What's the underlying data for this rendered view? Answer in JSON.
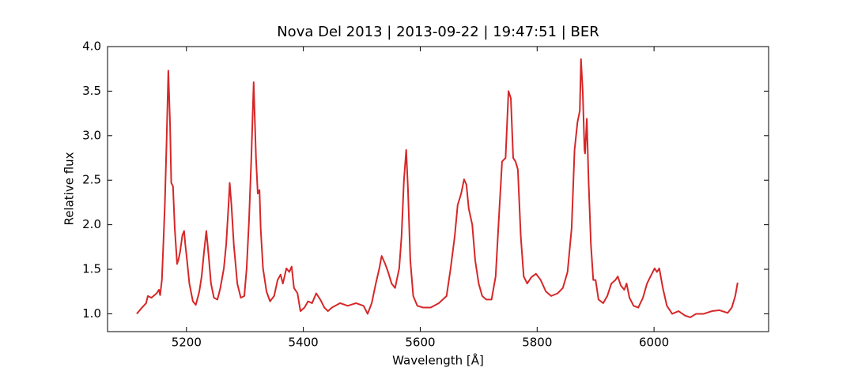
{
  "chart_data": {
    "type": "line",
    "title": "Nova Del 2013 | 2013-09-22 | 19:47:51 | BER",
    "x_label": "Wavelength [Å]",
    "y_label": "Relative flux",
    "xlim": [
      5065,
      6196
    ],
    "ylim": [
      0.8,
      4.0
    ],
    "xticks": [
      5200,
      5400,
      5600,
      5800,
      6000
    ],
    "yticks": [
      {
        "value": 1.0,
        "label": "1.0"
      },
      {
        "value": 1.5,
        "label": "1.5"
      },
      {
        "value": 2.0,
        "label": "2.0"
      },
      {
        "value": 2.5,
        "label": "2.5"
      },
      {
        "value": 3.0,
        "label": "3.0"
      },
      {
        "value": 3.5,
        "label": "3.5"
      },
      {
        "value": 4.0,
        "label": "4.0"
      }
    ],
    "grid": false,
    "x": [
      5115,
      5124,
      5131,
      5134,
      5140,
      5149,
      5153,
      5155,
      5158,
      5161,
      5163,
      5166,
      5169,
      5172,
      5174,
      5177,
      5180,
      5184,
      5186,
      5189,
      5193,
      5196,
      5198,
      5201,
      5205,
      5211,
      5216,
      5222,
      5226,
      5230,
      5234,
      5238,
      5242,
      5247,
      5253,
      5258,
      5264,
      5268,
      5272,
      5274,
      5277,
      5281,
      5287,
      5293,
      5299,
      5303,
      5307,
      5311,
      5315,
      5319,
      5322,
      5325,
      5327,
      5331,
      5337,
      5343,
      5350,
      5356,
      5361,
      5365,
      5371,
      5376,
      5380,
      5384,
      5390,
      5395,
      5402,
      5408,
      5415,
      5422,
      5429,
      5436,
      5442,
      5449,
      5463,
      5476,
      5490,
      5503,
      5510,
      5517,
      5524,
      5530,
      5534,
      5540,
      5545,
      5551,
      5557,
      5564,
      5568,
      5572,
      5576,
      5579,
      5583,
      5588,
      5595,
      5605,
      5618,
      5632,
      5645,
      5652,
      5659,
      5664,
      5670,
      5675,
      5679,
      5683,
      5689,
      5694,
      5700,
      5706,
      5713,
      5722,
      5729,
      5735,
      5740,
      5746,
      5751,
      5755,
      5759,
      5763,
      5767,
      5772,
      5777,
      5783,
      5790,
      5798,
      5806,
      5815,
      5824,
      5835,
      5844,
      5852,
      5859,
      5864,
      5869,
      5873,
      5875,
      5878,
      5881,
      5882,
      5885,
      5888,
      5892,
      5896,
      5900,
      5905,
      5913,
      5920,
      5927,
      5934,
      5938,
      5943,
      5949,
      5953,
      5958,
      5965,
      5973,
      5981,
      5988,
      5994,
      6001,
      6005,
      6009,
      6015,
      6022,
      6031,
      6042,
      6053,
      6062,
      6072,
      6085,
      6099,
      6112,
      6126,
      6133,
      6139,
      6143
    ],
    "series": [
      {
        "name": "flux",
        "color": "#d62728",
        "values": [
          1.0,
          1.07,
          1.12,
          1.2,
          1.18,
          1.23,
          1.27,
          1.21,
          1.38,
          1.87,
          2.22,
          2.93,
          3.73,
          3.12,
          2.47,
          2.43,
          1.96,
          1.56,
          1.6,
          1.69,
          1.88,
          1.93,
          1.78,
          1.6,
          1.34,
          1.14,
          1.1,
          1.25,
          1.42,
          1.69,
          1.93,
          1.65,
          1.34,
          1.18,
          1.16,
          1.29,
          1.51,
          1.78,
          2.22,
          2.47,
          2.22,
          1.78,
          1.34,
          1.18,
          1.2,
          1.51,
          2.04,
          2.75,
          3.6,
          2.75,
          2.35,
          2.39,
          1.96,
          1.51,
          1.25,
          1.14,
          1.2,
          1.38,
          1.44,
          1.34,
          1.51,
          1.47,
          1.53,
          1.29,
          1.23,
          1.03,
          1.07,
          1.14,
          1.12,
          1.23,
          1.16,
          1.07,
          1.03,
          1.07,
          1.12,
          1.09,
          1.12,
          1.09,
          1.0,
          1.12,
          1.34,
          1.51,
          1.65,
          1.56,
          1.47,
          1.34,
          1.29,
          1.51,
          1.87,
          2.49,
          2.84,
          2.4,
          1.6,
          1.2,
          1.09,
          1.07,
          1.07,
          1.12,
          1.2,
          1.51,
          1.87,
          2.22,
          2.35,
          2.51,
          2.45,
          2.18,
          2.0,
          1.6,
          1.34,
          1.2,
          1.16,
          1.16,
          1.42,
          2.13,
          2.71,
          2.75,
          3.5,
          3.42,
          2.75,
          2.71,
          2.62,
          1.87,
          1.42,
          1.34,
          1.41,
          1.45,
          1.38,
          1.25,
          1.2,
          1.23,
          1.29,
          1.47,
          1.96,
          2.84,
          3.15,
          3.28,
          3.86,
          3.5,
          2.84,
          2.8,
          3.19,
          2.49,
          1.78,
          1.38,
          1.38,
          1.16,
          1.12,
          1.2,
          1.34,
          1.38,
          1.42,
          1.32,
          1.27,
          1.34,
          1.18,
          1.09,
          1.07,
          1.18,
          1.34,
          1.42,
          1.51,
          1.47,
          1.51,
          1.29,
          1.09,
          1.0,
          1.03,
          0.98,
          0.96,
          1.0,
          1.0,
          1.03,
          1.04,
          1.01,
          1.07,
          1.2,
          1.35
        ]
      }
    ]
  }
}
